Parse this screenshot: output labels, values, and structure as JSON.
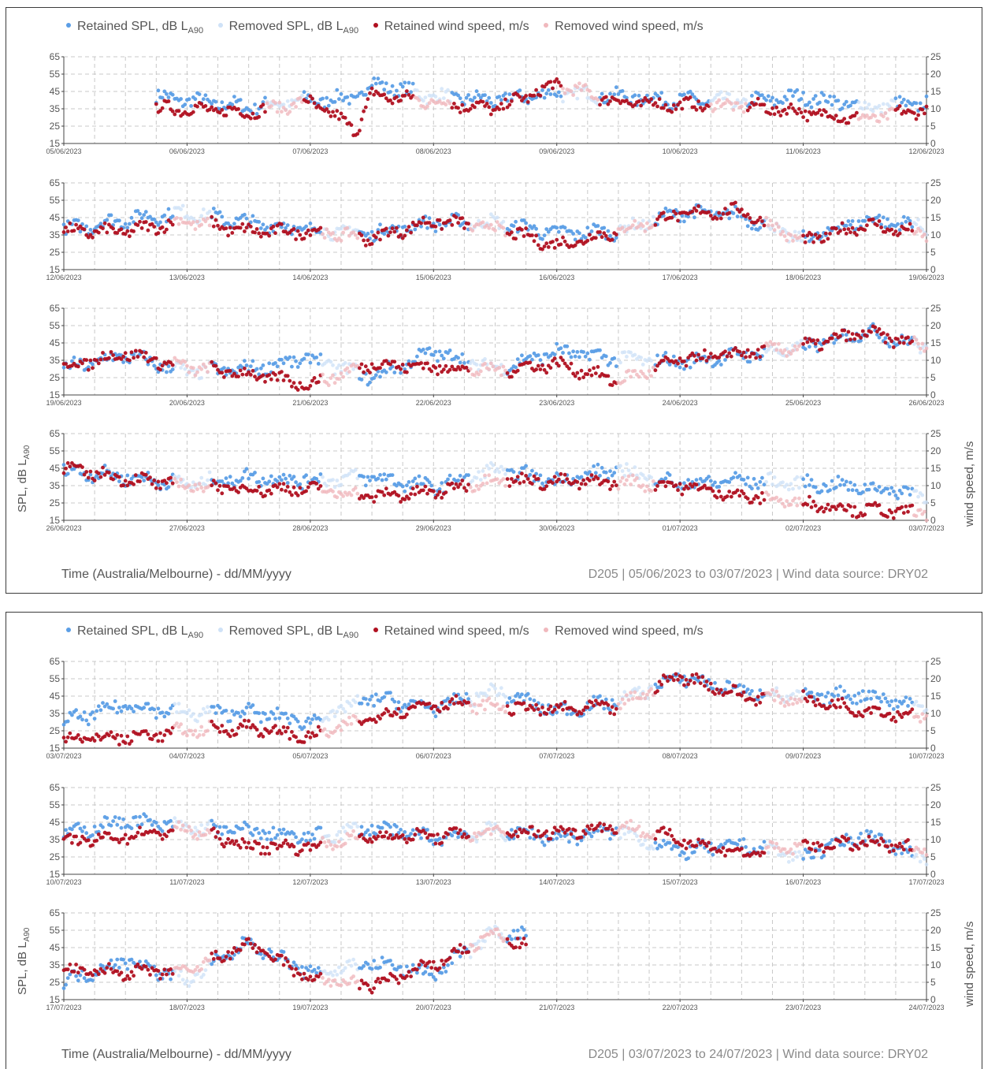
{
  "figures": [
    {
      "legend": [
        {
          "main": "Retained SPL, dB L",
          "sub": "A90",
          "color": "#5b9ee6"
        },
        {
          "main": "Removed SPL, dB L",
          "sub": "A90",
          "color": "#cfe2f7"
        },
        {
          "main": "Retained wind speed, m/s",
          "sub": "",
          "color": "#b01020"
        },
        {
          "main": "Removed wind speed, m/s",
          "sub": "",
          "color": "#f0b8bd"
        }
      ],
      "y_left_label": {
        "main": "SPL, dB L",
        "sub": "A90"
      },
      "y_right_label": "wind speed, m/s",
      "footer_left": "Time (Australia/Melbourne) - dd/MM/yyyy",
      "footer_right": "D205 | 05/06/2023 to 03/07/2023 | Wind data source: DRY02"
    },
    {
      "legend": [
        {
          "main": "Retained SPL, dB L",
          "sub": "A90",
          "color": "#5b9ee6"
        },
        {
          "main": "Removed SPL, dB L",
          "sub": "A90",
          "color": "#cfe2f7"
        },
        {
          "main": "Retained wind speed, m/s",
          "sub": "",
          "color": "#b01020"
        },
        {
          "main": "Removed wind speed, m/s",
          "sub": "",
          "color": "#f0b8bd"
        }
      ],
      "y_left_label": {
        "main": "SPL, dB L",
        "sub": "A90"
      },
      "y_right_label": "wind speed, m/s",
      "footer_left": "Time (Australia/Melbourne) - dd/MM/yyyy",
      "footer_right": "D205 | 03/07/2023 to 24/07/2023 | Wind data source: DRY02"
    }
  ],
  "chart_data": [
    {
      "type": "scatter",
      "y_left": {
        "label": "SPL, dB LA90",
        "ylim": [
          15,
          65
        ],
        "ticks": [
          15,
          25,
          35,
          45,
          55,
          65
        ]
      },
      "y_right": {
        "label": "wind speed, m/s",
        "ylim": [
          0,
          25
        ],
        "ticks": [
          0,
          5,
          10,
          15,
          20,
          25
        ]
      },
      "xlabel": "Time (Australia/Melbourne) - dd/MM/yyyy",
      "x_ticks": [
        "05/06/2023",
        "06/06/2023",
        "07/06/2023",
        "08/06/2023",
        "09/06/2023",
        "10/06/2023",
        "11/06/2023",
        "12/06/2023"
      ],
      "grid": true,
      "series": [
        {
          "name": "Retained SPL, dB LA90",
          "axis": "left",
          "x": [
            "05/06/2023 18:00",
            "06/06/2023 00:00",
            "06/06/2023 12:00",
            "07/06/2023 00:00",
            "07/06/2023 09:00",
            "07/06/2023 12:00",
            "08/06/2023 00:00",
            "08/06/2023 12:00",
            "09/06/2023 00:00",
            "09/06/2023 12:00",
            "10/06/2023 00:00",
            "10/06/2023 12:00",
            "11/06/2023 00:00",
            "11/06/2023 12:00",
            "12/06/2023 00:00"
          ],
          "values": [
            42,
            40,
            36,
            40,
            41,
            50,
            42,
            40,
            44,
            42,
            40,
            39,
            42,
            36,
            38
          ]
        },
        {
          "name": "Retained wind speed, m/s",
          "axis": "right",
          "x": [
            "05/06/2023 18:00",
            "06/06/2023 00:00",
            "06/06/2023 12:00",
            "07/06/2023 00:00",
            "07/06/2023 09:00",
            "07/06/2023 12:00",
            "08/06/2023 00:00",
            "08/06/2023 12:00",
            "09/06/2023 00:00",
            "09/06/2023 12:00",
            "10/06/2023 00:00",
            "10/06/2023 12:00",
            "11/06/2023 00:00",
            "11/06/2023 12:00",
            "12/06/2023 00:00"
          ],
          "values": [
            10,
            10,
            9,
            12,
            4,
            14,
            12,
            10,
            17,
            12,
            11,
            11,
            9,
            7,
            10
          ]
        }
      ]
    },
    {
      "type": "scatter",
      "y_left": {
        "label": "SPL, dB LA90",
        "ylim": [
          15,
          65
        ],
        "ticks": [
          15,
          25,
          35,
          45,
          55,
          65
        ]
      },
      "y_right": {
        "label": "wind speed, m/s",
        "ylim": [
          0,
          25
        ],
        "ticks": [
          0,
          5,
          10,
          15,
          20,
          25
        ]
      },
      "xlabel": "Time (Australia/Melbourne) - dd/MM/yyyy",
      "x_ticks": [
        "12/06/2023",
        "13/06/2023",
        "14/06/2023",
        "15/06/2023",
        "16/06/2023",
        "17/06/2023",
        "18/06/2023",
        "19/06/2023"
      ],
      "grid": true,
      "series": [
        {
          "name": "Retained SPL, dB LA90",
          "axis": "left",
          "x": [
            "12/06/2023 00:00",
            "12/06/2023 12:00",
            "13/06/2023 00:00",
            "13/06/2023 12:00",
            "14/06/2023 00:00",
            "14/06/2023 12:00",
            "15/06/2023 00:00",
            "15/06/2023 12:00",
            "16/06/2023 00:00",
            "16/06/2023 12:00",
            "17/06/2023 00:00",
            "17/06/2023 12:00",
            "18/06/2023 00:00",
            "18/06/2023 12:00",
            "19/06/2023 00:00"
          ],
          "values": [
            38,
            44,
            48,
            42,
            38,
            36,
            42,
            42,
            36,
            37,
            48,
            46,
            32,
            44,
            40
          ]
        },
        {
          "name": "Retained wind speed, m/s",
          "axis": "right",
          "x": [
            "12/06/2023 00:00",
            "12/06/2023 12:00",
            "13/06/2023 00:00",
            "13/06/2023 12:00",
            "14/06/2023 00:00",
            "14/06/2023 12:00",
            "15/06/2023 00:00",
            "15/06/2023 12:00",
            "16/06/2023 00:00",
            "16/06/2023 12:00",
            "17/06/2023 00:00",
            "17/06/2023 12:00",
            "18/06/2023 00:00",
            "18/06/2023 12:00",
            "19/06/2023 00:00"
          ],
          "values": [
            11,
            11,
            14,
            11,
            11,
            9,
            14,
            12,
            7,
            11,
            16,
            17,
            8,
            13,
            10
          ]
        }
      ]
    },
    {
      "type": "scatter",
      "y_left": {
        "label": "SPL, dB LA90",
        "ylim": [
          15,
          65
        ],
        "ticks": [
          15,
          25,
          35,
          45,
          55,
          65
        ]
      },
      "y_right": {
        "label": "wind speed, m/s",
        "ylim": [
          0,
          25
        ],
        "ticks": [
          0,
          5,
          10,
          15,
          20,
          25
        ]
      },
      "xlabel": "Time (Australia/Melbourne) - dd/MM/yyyy",
      "x_ticks": [
        "19/06/2023",
        "20/06/2023",
        "21/06/2023",
        "22/06/2023",
        "23/06/2023",
        "24/06/2023",
        "25/06/2023",
        "26/06/2023"
      ],
      "grid": true,
      "series": [
        {
          "name": "Retained SPL, dB LA90",
          "axis": "left",
          "x": [
            "19/06/2023 00:00",
            "19/06/2023 12:00",
            "20/06/2023 00:00",
            "20/06/2023 12:00",
            "21/06/2023 00:00",
            "21/06/2023 12:00",
            "22/06/2023 00:00",
            "22/06/2023 12:00",
            "23/06/2023 00:00",
            "23/06/2023 12:00",
            "24/06/2023 00:00",
            "24/06/2023 12:00",
            "25/06/2023 00:00",
            "25/06/2023 12:00",
            "26/06/2023 00:00"
          ],
          "values": [
            30,
            38,
            28,
            30,
            36,
            25,
            40,
            30,
            40,
            36,
            34,
            38,
            42,
            52,
            42
          ]
        },
        {
          "name": "Retained wind speed, m/s",
          "axis": "right",
          "x": [
            "19/06/2023 00:00",
            "19/06/2023 12:00",
            "20/06/2023 00:00",
            "20/06/2023 12:00",
            "21/06/2023 00:00",
            "21/06/2023 12:00",
            "22/06/2023 00:00",
            "22/06/2023 12:00",
            "23/06/2023 00:00",
            "23/06/2023 12:00",
            "24/06/2023 00:00",
            "24/06/2023 12:00",
            "25/06/2023 00:00",
            "25/06/2023 12:00",
            "26/06/2023 00:00"
          ],
          "values": [
            8,
            12,
            8,
            6,
            3,
            9,
            8,
            7,
            9,
            4,
            10,
            12,
            14,
            18,
            14
          ]
        }
      ]
    },
    {
      "type": "scatter",
      "y_left": {
        "label": "SPL, dB LA90",
        "ylim": [
          15,
          65
        ],
        "ticks": [
          15,
          25,
          35,
          45,
          55,
          65
        ]
      },
      "y_right": {
        "label": "wind speed, m/s",
        "ylim": [
          0,
          25
        ],
        "ticks": [
          0,
          5,
          10,
          15,
          20,
          25
        ]
      },
      "xlabel": "Time (Australia/Melbourne) - dd/MM/yyyy",
      "x_ticks": [
        "26/06/2023",
        "27/06/2023",
        "28/06/2023",
        "29/06/2023",
        "30/06/2023",
        "01/07/2023",
        "02/07/2023",
        "03/07/2023"
      ],
      "grid": true,
      "series": [
        {
          "name": "Retained SPL, dB LA90",
          "axis": "left",
          "x": [
            "26/06/2023 00:00",
            "26/06/2023 12:00",
            "27/06/2023 00:00",
            "27/06/2023 12:00",
            "28/06/2023 00:00",
            "28/06/2023 12:00",
            "29/06/2023 00:00",
            "29/06/2023 12:00",
            "30/06/2023 00:00",
            "30/06/2023 12:00",
            "01/07/2023 00:00",
            "01/07/2023 12:00",
            "02/07/2023 00:00",
            "02/07/2023 12:00",
            "03/07/2023 00:00"
          ],
          "values": [
            44,
            40,
            36,
            40,
            38,
            40,
            34,
            44,
            38,
            44,
            36,
            38,
            36,
            34,
            30
          ]
        },
        {
          "name": "Retained wind speed, m/s",
          "axis": "right",
          "x": [
            "26/06/2023 00:00",
            "26/06/2023 12:00",
            "27/06/2023 00:00",
            "27/06/2023 12:00",
            "28/06/2023 00:00",
            "28/06/2023 12:00",
            "29/06/2023 00:00",
            "29/06/2023 12:00",
            "30/06/2023 00:00",
            "30/06/2023 12:00",
            "01/07/2023 00:00",
            "01/07/2023 12:00",
            "02/07/2023 00:00",
            "02/07/2023 12:00",
            "03/07/2023 00:00"
          ],
          "values": [
            15,
            12,
            10,
            9,
            9,
            7,
            8,
            12,
            11,
            11,
            10,
            7,
            5,
            3,
            2
          ]
        }
      ]
    },
    {
      "type": "scatter",
      "y_left": {
        "label": "SPL, dB LA90",
        "ylim": [
          15,
          65
        ],
        "ticks": [
          15,
          25,
          35,
          45,
          55,
          65
        ]
      },
      "y_right": {
        "label": "wind speed, m/s",
        "ylim": [
          0,
          25
        ],
        "ticks": [
          0,
          5,
          10,
          15,
          20,
          25
        ]
      },
      "xlabel": "Time (Australia/Melbourne) - dd/MM/yyyy",
      "x_ticks": [
        "03/07/2023",
        "04/07/2023",
        "05/07/2023",
        "06/07/2023",
        "07/07/2023",
        "08/07/2023",
        "09/07/2023",
        "10/07/2023"
      ],
      "grid": true,
      "series": [
        {
          "name": "Retained SPL, dB LA90",
          "axis": "left",
          "x": [
            "03/07/2023 00:00",
            "03/07/2023 12:00",
            "04/07/2023 00:00",
            "04/07/2023 12:00",
            "05/07/2023 00:00",
            "05/07/2023 12:00",
            "06/07/2023 00:00",
            "06/07/2023 12:00",
            "07/07/2023 00:00",
            "07/07/2023 12:00",
            "08/07/2023 00:00",
            "08/07/2023 12:00",
            "09/07/2023 00:00",
            "09/07/2023 12:00",
            "10/07/2023 00:00"
          ],
          "values": [
            30,
            40,
            35,
            36,
            30,
            44,
            38,
            48,
            36,
            42,
            56,
            48,
            44,
            46,
            38
          ]
        },
        {
          "name": "Retained wind speed, m/s",
          "axis": "right",
          "x": [
            "03/07/2023 00:00",
            "03/07/2023 12:00",
            "04/07/2023 00:00",
            "04/07/2023 12:00",
            "05/07/2023 00:00",
            "05/07/2023 12:00",
            "06/07/2023 00:00",
            "06/07/2023 12:00",
            "07/07/2023 00:00",
            "07/07/2023 12:00",
            "08/07/2023 00:00",
            "08/07/2023 12:00",
            "09/07/2023 00:00",
            "09/07/2023 12:00",
            "10/07/2023 00:00"
          ],
          "values": [
            3,
            3,
            5,
            6,
            3,
            9,
            13,
            12,
            11,
            12,
            21,
            15,
            14,
            11,
            9
          ]
        }
      ]
    },
    {
      "type": "scatter",
      "y_left": {
        "label": "SPL, dB LA90",
        "ylim": [
          15,
          65
        ],
        "ticks": [
          15,
          25,
          35,
          45,
          55,
          65
        ]
      },
      "y_right": {
        "label": "wind speed, m/s",
        "ylim": [
          0,
          25
        ],
        "ticks": [
          0,
          5,
          10,
          15,
          20,
          25
        ]
      },
      "xlabel": "Time (Australia/Melbourne) - dd/MM/yyyy",
      "x_ticks": [
        "10/07/2023",
        "11/07/2023",
        "12/07/2023",
        "13/07/2023",
        "14/07/2023",
        "15/07/2023",
        "16/07/2023",
        "17/07/2023"
      ],
      "grid": true,
      "series": [
        {
          "name": "Retained SPL, dB LA90",
          "axis": "left",
          "x": [
            "10/07/2023 00:00",
            "10/07/2023 12:00",
            "11/07/2023 00:00",
            "11/07/2023 12:00",
            "12/07/2023 00:00",
            "12/07/2023 12:00",
            "13/07/2023 00:00",
            "13/07/2023 12:00",
            "14/07/2023 00:00",
            "14/07/2023 12:00",
            "15/07/2023 00:00",
            "15/07/2023 12:00",
            "16/07/2023 00:00",
            "16/07/2023 12:00",
            "17/07/2023 00:00"
          ],
          "values": [
            38,
            46,
            42,
            40,
            36,
            42,
            36,
            40,
            36,
            40,
            28,
            32,
            25,
            38,
            24
          ]
        },
        {
          "name": "Retained wind speed, m/s",
          "axis": "right",
          "x": [
            "10/07/2023 00:00",
            "10/07/2023 12:00",
            "11/07/2023 00:00",
            "11/07/2023 12:00",
            "12/07/2023 00:00",
            "12/07/2023 12:00",
            "13/07/2023 00:00",
            "13/07/2023 12:00",
            "14/07/2023 00:00",
            "14/07/2023 12:00",
            "15/07/2023 00:00",
            "15/07/2023 12:00",
            "16/07/2023 00:00",
            "16/07/2023 12:00",
            "17/07/2023 00:00"
          ],
          "values": [
            9,
            11,
            13,
            8,
            8,
            11,
            11,
            12,
            12,
            14,
            10,
            6,
            8,
            9,
            7
          ]
        }
      ]
    },
    {
      "type": "scatter",
      "y_left": {
        "label": "SPL, dB LA90",
        "ylim": [
          15,
          65
        ],
        "ticks": [
          15,
          25,
          35,
          45,
          55,
          65
        ]
      },
      "y_right": {
        "label": "wind speed, m/s",
        "ylim": [
          0,
          25
        ],
        "ticks": [
          0,
          5,
          10,
          15,
          20,
          25
        ]
      },
      "xlabel": "Time (Australia/Melbourne) - dd/MM/yyyy",
      "x_ticks": [
        "17/07/2023",
        "18/07/2023",
        "19/07/2023",
        "20/07/2023",
        "21/07/2023",
        "22/07/2023",
        "23/07/2023",
        "24/07/2023"
      ],
      "grid": true,
      "series": [
        {
          "name": "Retained SPL, dB LA90",
          "axis": "left",
          "x": [
            "17/07/2023 00:00",
            "17/07/2023 12:00",
            "18/07/2023 00:00",
            "18/07/2023 12:00",
            "19/07/2023 00:00",
            "19/07/2023 12:00",
            "20/07/2023 00:00",
            "20/07/2023 12:00",
            "20/07/2023 18:00"
          ],
          "values": [
            25,
            38,
            26,
            48,
            30,
            36,
            30,
            54,
            52
          ]
        },
        {
          "name": "Retained wind speed, m/s",
          "axis": "right",
          "x": [
            "17/07/2023 00:00",
            "17/07/2023 12:00",
            "18/07/2023 00:00",
            "18/07/2023 12:00",
            "19/07/2023 00:00",
            "19/07/2023 12:00",
            "20/07/2023 00:00",
            "20/07/2023 12:00",
            "20/07/2023 18:00"
          ],
          "values": [
            8,
            8,
            8,
            16,
            6,
            4,
            10,
            19,
            15
          ]
        }
      ]
    }
  ]
}
